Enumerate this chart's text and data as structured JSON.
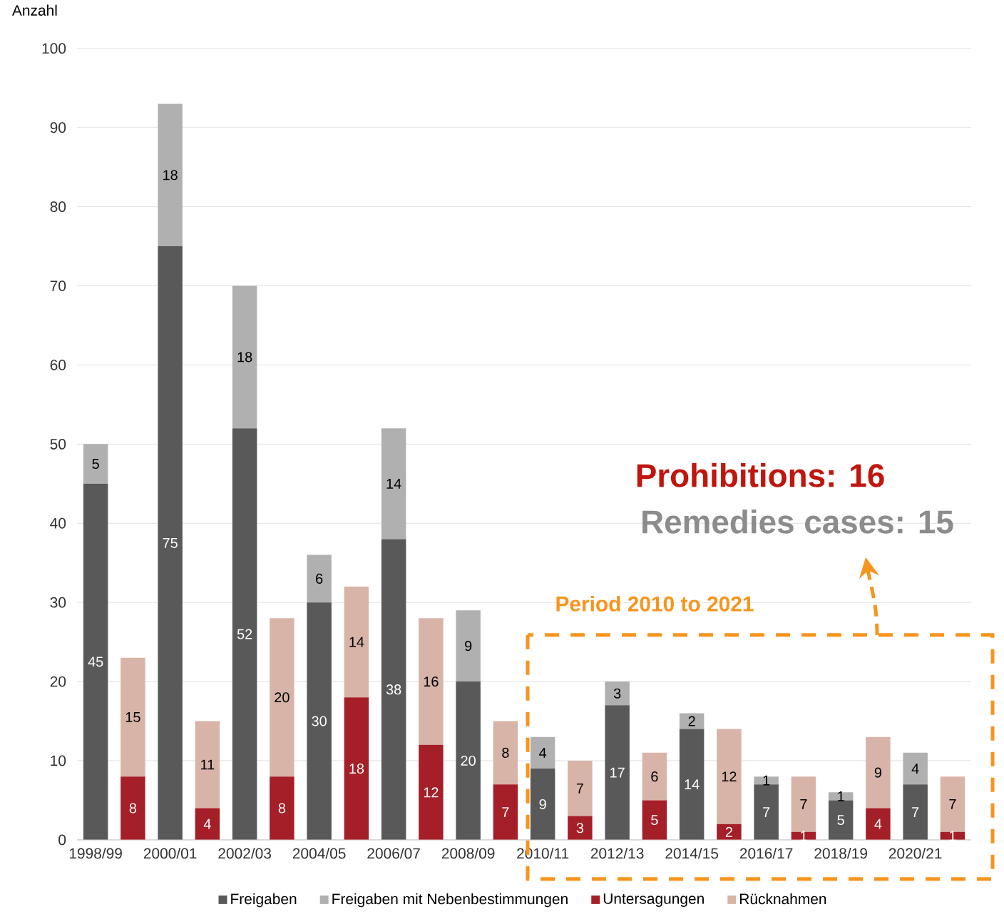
{
  "chart_data": {
    "type": "bar",
    "ylabel": "Anzahl",
    "stacked": true,
    "data_labels": true,
    "grid": "y",
    "legend": "bottom",
    "categories": [
      "1998/99",
      null,
      "2000/01",
      null,
      "2002/03",
      null,
      "2004/05",
      null,
      "2006/07",
      null,
      "2008/09",
      null,
      "2010/11",
      null,
      "2012/13",
      null,
      "2014/15",
      null,
      "2016/17",
      null,
      "2018/19",
      null,
      "2020/21",
      null
    ],
    "ylim": [
      0,
      100
    ],
    "yticks": [
      0,
      10,
      20,
      30,
      40,
      50,
      60,
      70,
      80,
      90,
      100
    ],
    "series": [
      {
        "name": "Freigaben",
        "color": "#595959",
        "values": [
          45,
          null,
          75,
          null,
          52,
          null,
          30,
          null,
          38,
          null,
          20,
          null,
          9,
          null,
          17,
          null,
          14,
          null,
          7,
          null,
          5,
          null,
          7,
          null
        ]
      },
      {
        "name": "Freigaben mit Nebenbestimmungen",
        "color": "#b0b0b0",
        "values": [
          5,
          null,
          18,
          null,
          18,
          null,
          6,
          null,
          14,
          null,
          9,
          null,
          4,
          null,
          3,
          null,
          2,
          null,
          1,
          null,
          1,
          null,
          4,
          null
        ]
      },
      {
        "name": "Untersagungen",
        "color": "#a51f28",
        "values": [
          null,
          8,
          null,
          4,
          null,
          8,
          null,
          18,
          null,
          12,
          null,
          7,
          null,
          3,
          null,
          5,
          null,
          2,
          null,
          1,
          null,
          4,
          null,
          1
        ]
      },
      {
        "name": "Rücknahmen",
        "color": "#d8b4a8",
        "values": [
          null,
          15,
          null,
          11,
          null,
          20,
          null,
          14,
          null,
          16,
          null,
          8,
          null,
          7,
          null,
          6,
          null,
          12,
          null,
          7,
          null,
          9,
          null,
          7
        ]
      }
    ],
    "annotations": [
      "Prohibitions: 16",
      "Remedies cases: 15",
      "Period 2010 to 2021"
    ]
  }
}
